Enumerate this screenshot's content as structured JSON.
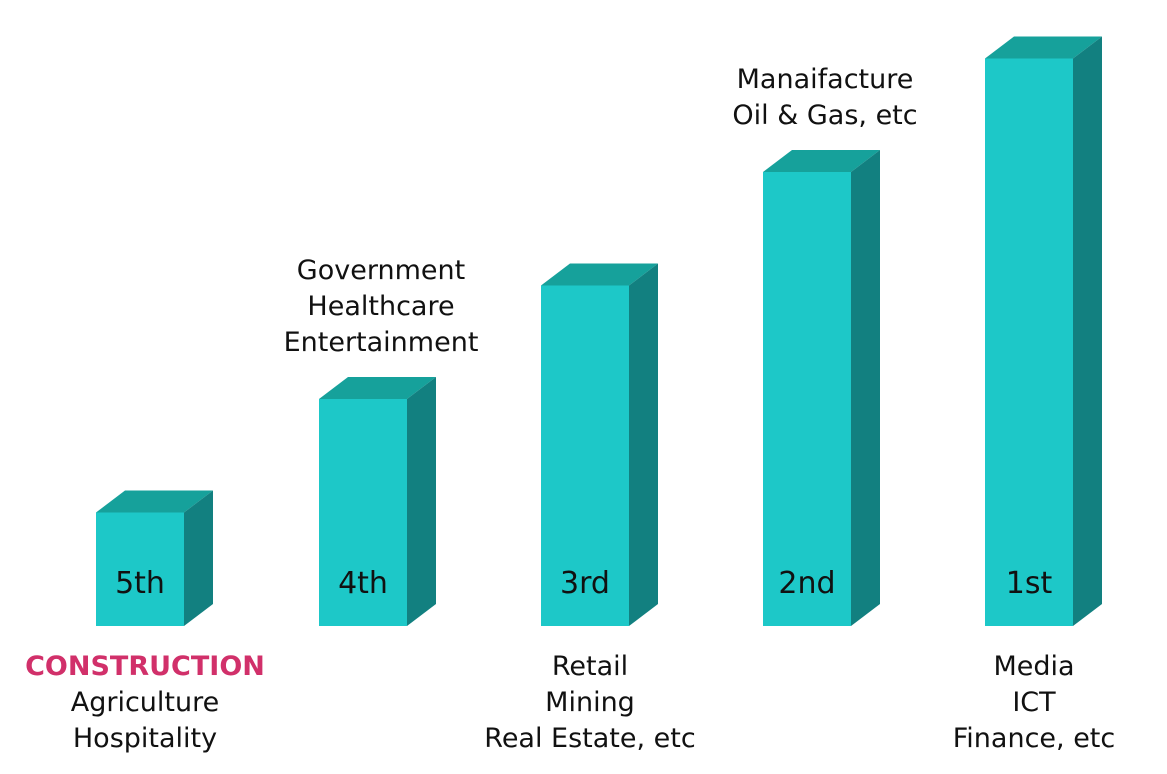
{
  "colors": {
    "front": "#1dc8c8",
    "top": "#16a19b",
    "side": "#128080",
    "text": "#111111",
    "highlight": "#d1306a"
  },
  "chart_data": {
    "type": "bar",
    "title": "",
    "xlabel": "",
    "ylabel": "",
    "ylim": [
      0,
      5
    ],
    "grid": false,
    "categories": [
      "5th",
      "4th",
      "3rd",
      "2nd",
      "1st"
    ],
    "values": [
      1,
      2,
      3,
      4,
      5
    ],
    "annotations": [
      {
        "category": "5th",
        "position": "below",
        "lines": [
          "CONSTRUCTION",
          "Agriculture",
          "Hospitality"
        ],
        "highlight": "CONSTRUCTION"
      },
      {
        "category": "4th",
        "position": "above",
        "lines": [
          "Government",
          "Healthcare",
          "Entertainment"
        ]
      },
      {
        "category": "3rd",
        "position": "below",
        "lines": [
          "Retail",
          "Mining",
          "Real Estate, etc"
        ]
      },
      {
        "category": "2nd",
        "position": "above",
        "lines": [
          "Manaifacture",
          "Oil & Gas, etc"
        ]
      },
      {
        "category": "1st",
        "position": "below",
        "lines": [
          "Media",
          "ICT",
          "Finance, etc"
        ]
      }
    ]
  }
}
